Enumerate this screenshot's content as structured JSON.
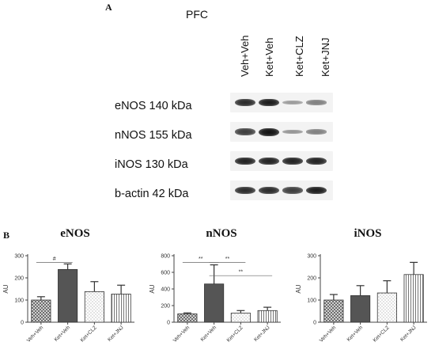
{
  "panel_a": {
    "letter": "A",
    "region": "PFC",
    "lanes": [
      "Veh+Veh",
      "Ket+Veh",
      "Ket+CLZ",
      "Ket+JNJ"
    ],
    "blots": [
      {
        "label": "eNOS 140 kDa",
        "intensity": [
          0.85,
          0.95,
          0.18,
          0.35
        ]
      },
      {
        "label": "nNOS 155 kDa",
        "intensity": [
          0.75,
          1.0,
          0.22,
          0.35
        ]
      },
      {
        "label": "iNOS 130 kDa",
        "intensity": [
          0.9,
          0.9,
          0.9,
          0.9
        ]
      },
      {
        "label": "b-actin 42 kDa",
        "intensity": [
          0.85,
          0.85,
          0.75,
          0.95
        ]
      }
    ]
  },
  "panel_b": {
    "letter": "B"
  },
  "colors": {
    "bar_dark": "#555555",
    "bar_light": "#ffffff",
    "axis": "#444444"
  },
  "chart_data": [
    {
      "type": "bar",
      "title": "eNOS",
      "ylabel": "AU",
      "ylim": [
        0,
        300
      ],
      "yticks": [
        0,
        100,
        200,
        300
      ],
      "categories": [
        "Veh+Veh",
        "Ket+Veh",
        "Ket+CLZ",
        "Ket+JNJ"
      ],
      "values": [
        100,
        238,
        138,
        127
      ],
      "errors": [
        15,
        25,
        45,
        40
      ],
      "patterns": [
        "checker",
        "solid",
        "dots",
        "vlines"
      ],
      "annotations": [
        {
          "text": "#",
          "from": 0,
          "to": 1,
          "y": 270
        }
      ]
    },
    {
      "type": "bar",
      "title": "nNOS",
      "ylabel": "AU",
      "ylim": [
        0,
        800
      ],
      "yticks": [
        0,
        200,
        400,
        600,
        800
      ],
      "categories": [
        "Veh+Veh",
        "Ket+Veh",
        "Ket+CLZ",
        "Ket+JNJ"
      ],
      "values": [
        100,
        460,
        110,
        140
      ],
      "errors": [
        12,
        230,
        30,
        40
      ],
      "patterns": [
        "checker",
        "solid",
        "dots",
        "vlines"
      ],
      "annotations": [
        {
          "text": "**",
          "from": 0,
          "to": 1,
          "y": 720
        },
        {
          "text": "**",
          "from": 1,
          "to": 2,
          "y": 720
        },
        {
          "text": "**",
          "from": 1,
          "to": 3,
          "y": 560
        }
      ]
    },
    {
      "type": "bar",
      "title": "iNOS",
      "ylabel": "AU",
      "ylim": [
        0,
        300
      ],
      "yticks": [
        0,
        100,
        200,
        300
      ],
      "categories": [
        "Veh+Veh",
        "Ket+Veh",
        "Ket+CLZ",
        "Ket+JNJ"
      ],
      "values": [
        100,
        120,
        132,
        215
      ],
      "errors": [
        25,
        45,
        55,
        55
      ],
      "patterns": [
        "checker",
        "solid",
        "dots",
        "vlines"
      ],
      "annotations": []
    }
  ]
}
